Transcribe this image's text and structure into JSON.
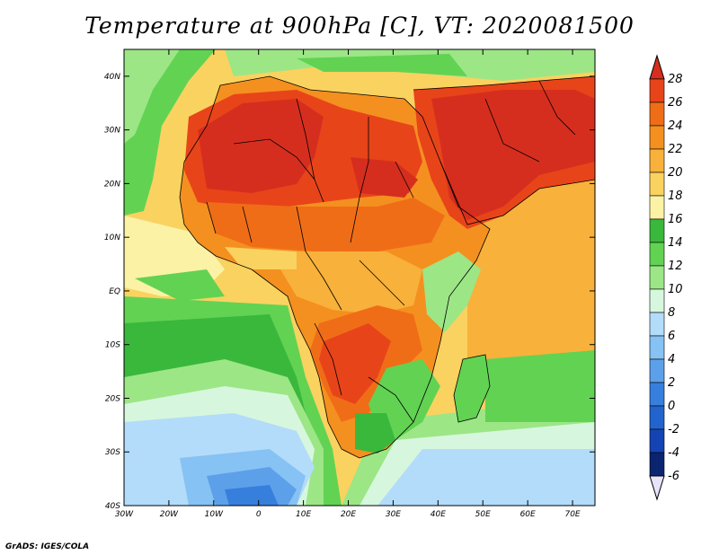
{
  "title": "Temperature at 900hPa [C], VT: 2020081500",
  "credit": "GrADS: IGES/COLA",
  "map": {
    "lat_range": [
      -40,
      45
    ],
    "lon_range": [
      -30,
      75
    ],
    "lat_ticks": [
      "40N",
      "30N",
      "20N",
      "10N",
      "EQ",
      "10S",
      "20S",
      "30S",
      "40S"
    ],
    "lon_ticks": [
      "30W",
      "20W",
      "10W",
      "0",
      "10E",
      "20E",
      "30E",
      "40E",
      "50E",
      "60E",
      "70E"
    ]
  },
  "colorbar": {
    "labels": [
      "28",
      "26",
      "24",
      "22",
      "20",
      "18",
      "16",
      "14",
      "12",
      "10",
      "8",
      "6",
      "4",
      "2",
      "0",
      "-2",
      "-4",
      "-6"
    ],
    "colors": [
      "#d62e1e",
      "#e8441a",
      "#f06d18",
      "#f4901f",
      "#f8b13a",
      "#fad260",
      "#fbf2a6",
      "#3ab83c",
      "#62d253",
      "#9ce686",
      "#d6f7de",
      "#b3dcfa",
      "#86c2f3",
      "#5ca0ea",
      "#377fdc",
      "#2263ce",
      "#1444b4",
      "#0a2470"
    ]
  }
}
